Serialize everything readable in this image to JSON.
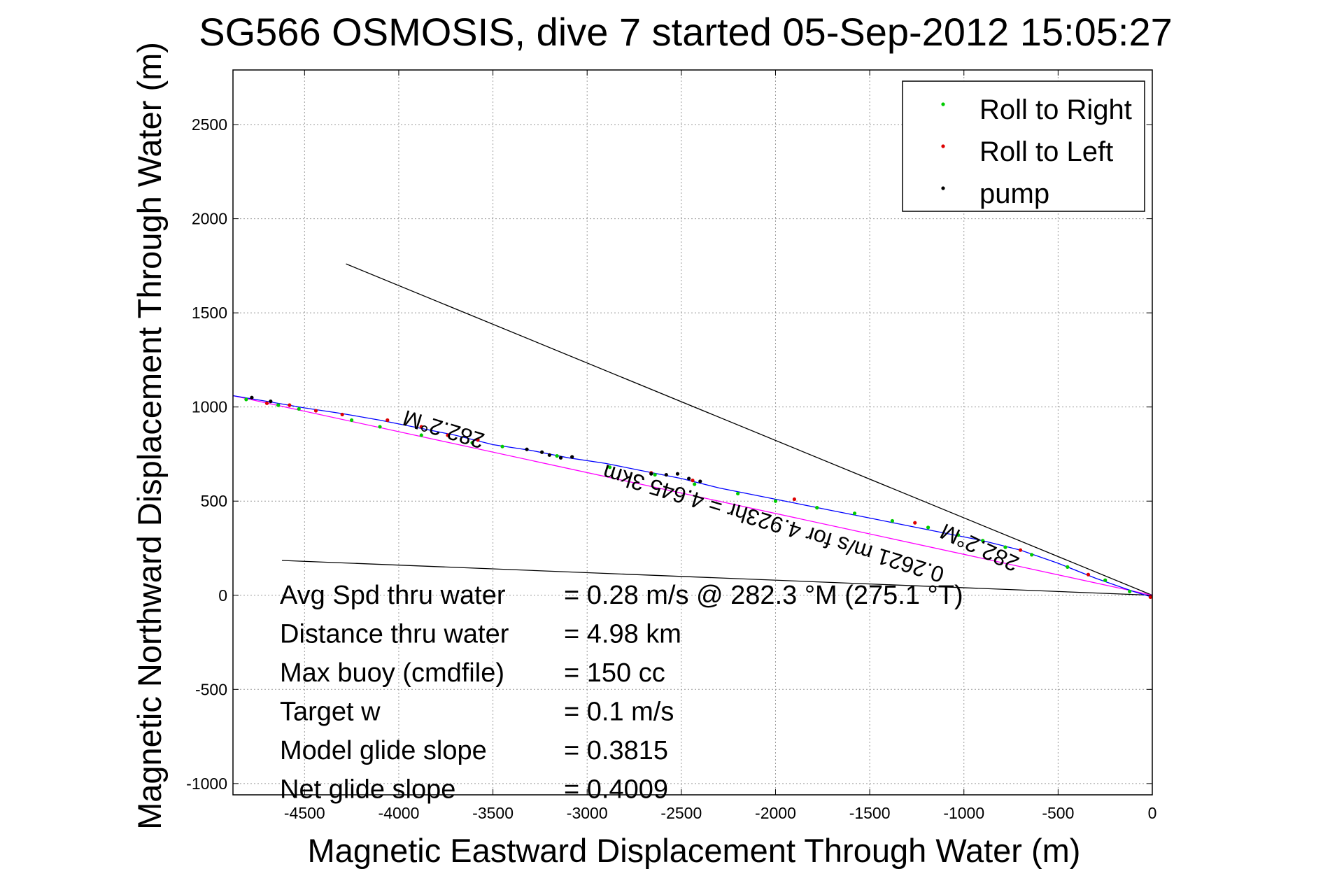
{
  "chart_data": {
    "type": "scatter",
    "title": "SG566 OSMOSIS, dive 7 started 05-Sep-2012 15:05:27",
    "xlabel": "Magnetic Eastward Displacement Through Water (m)",
    "ylabel": "Magnetic Northward Displacement Through Water (m)",
    "xlim": [
      -4880,
      0
    ],
    "ylim": [
      -1060,
      2790
    ],
    "xticks": [
      -4500,
      -4000,
      -3500,
      -3000,
      -2500,
      -2000,
      -1500,
      -1000,
      -500,
      0
    ],
    "yticks": [
      -1000,
      -500,
      0,
      500,
      1000,
      1500,
      2000,
      2500
    ],
    "grid": true,
    "legend_position": "top-right",
    "legend": [
      {
        "label": "Roll to Right",
        "color": "#00cc00"
      },
      {
        "label": "Roll to Left",
        "color": "#dd0000"
      },
      {
        "label": "pump",
        "color": "#000000"
      }
    ],
    "series": [
      {
        "name": "Roll to Right",
        "color": "#00cc00",
        "x": [
          -4810,
          -4640,
          -4530,
          -4250,
          -4100,
          -3880,
          -3610,
          -3450,
          -3160,
          -2880,
          -2640,
          -2430,
          -2200,
          -2000,
          -1780,
          -1580,
          -1380,
          -1190,
          -1030,
          -900,
          -780,
          -640,
          -450,
          -250,
          -120
        ],
        "y": [
          1040,
          1010,
          990,
          930,
          895,
          850,
          810,
          790,
          740,
          680,
          640,
          590,
          540,
          500,
          465,
          435,
          395,
          360,
          320,
          290,
          255,
          215,
          150,
          80,
          20
        ]
      },
      {
        "name": "Roll to Left",
        "color": "#dd0000",
        "x": [
          -4700,
          -4580,
          -4440,
          -4300,
          -4060,
          -3880,
          -3740,
          -3580,
          -2660,
          -2440,
          -1900,
          -1260,
          -700,
          -340,
          -10
        ],
        "y": [
          1020,
          1010,
          980,
          960,
          930,
          895,
          850,
          825,
          650,
          610,
          510,
          385,
          240,
          110,
          -10
        ]
      },
      {
        "name": "pump",
        "color": "#000000",
        "x": [
          -4780,
          -4680,
          -3320,
          -3240,
          -3200,
          -3140,
          -3080,
          -2660,
          -2580,
          -2520,
          -2460,
          -2400
        ],
        "y": [
          1050,
          1030,
          775,
          760,
          745,
          730,
          735,
          645,
          640,
          645,
          620,
          605
        ]
      }
    ],
    "track_path": {
      "name": "dive track",
      "color": "#0000ff",
      "x": [
        -4880,
        -4700,
        -4500,
        -4300,
        -4100,
        -3900,
        -3700,
        -3500,
        -3300,
        -3100,
        -2900,
        -2700,
        -2500,
        -2300,
        -2100,
        -1900,
        -1700,
        -1500,
        -1300,
        -1100,
        -900,
        -700,
        -500,
        -300,
        -100,
        0
      ],
      "y": [
        1060,
        1030,
        995,
        965,
        930,
        890,
        850,
        800,
        770,
        730,
        700,
        660,
        620,
        570,
        530,
        490,
        450,
        410,
        370,
        330,
        290,
        240,
        170,
        90,
        20,
        -10
      ]
    },
    "reference_lines": [
      {
        "color": "#000000",
        "x": [
          -4280,
          0
        ],
        "y": [
          1760,
          0
        ]
      },
      {
        "color": "#000000",
        "x": [
          -4620,
          0
        ],
        "y": [
          185,
          0
        ]
      },
      {
        "color": "#ff00ff",
        "x": [
          -4880,
          0
        ],
        "y": [
          1060,
          0
        ]
      }
    ],
    "annotations": [
      {
        "text": "282.2°M",
        "x": -3750,
        "y": 920,
        "rotation": 197
      },
      {
        "text": "0.2621 m/s for 4.923hr = 4.645 3km",
        "x": -2000,
        "y": 420,
        "rotation": 197
      },
      {
        "text": "282.2°M",
        "x": -900,
        "y": 290,
        "rotation": 205
      }
    ],
    "stats": [
      {
        "label": "Avg Spd thru water",
        "value": "=  0.28 m/s @ 282.3 °M (275.1 °T)"
      },
      {
        "label": "Distance thru water",
        "value": "=  4.98 km"
      },
      {
        "label": "Max buoy (cmdfile)",
        "value": "= 150 cc"
      },
      {
        "label": "Target w",
        "value": "= 0.1 m/s"
      },
      {
        "label": "Model glide slope",
        "value": "= 0.3815"
      },
      {
        "label": "Net glide slope",
        "value": "= 0.4009"
      }
    ]
  }
}
